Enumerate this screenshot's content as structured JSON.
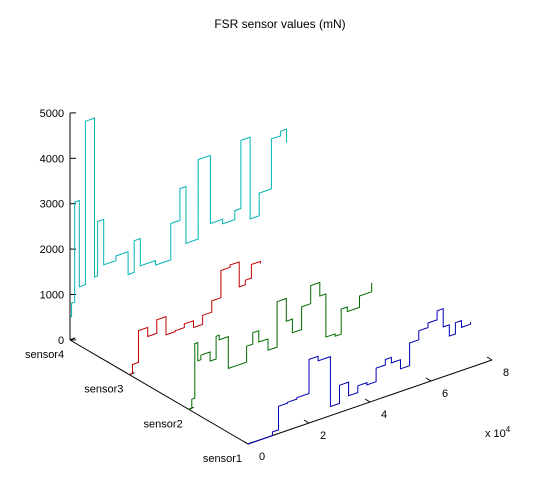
{
  "chart_data": {
    "type": "line",
    "view": "3d",
    "title": "FSR sensor values (mN)",
    "xlabel": "",
    "ylabel": "",
    "zlabel": "",
    "x_exponent_label": "x 10",
    "x_exponent": "4",
    "xlim": [
      0,
      8
    ],
    "zlim": [
      0,
      5000
    ],
    "x_ticks": [
      "0",
      "2",
      "4",
      "6",
      "8"
    ],
    "y_ticks": [
      "sensor1",
      "sensor2",
      "sensor3",
      "sensor4"
    ],
    "z_ticks": [
      "0",
      "1000",
      "2000",
      "3000",
      "4000",
      "5000"
    ],
    "grid": false,
    "series": [
      {
        "name": "sensor1",
        "color": "#0000b4",
        "x": [
          0.0,
          0.8,
          1.0,
          1.3,
          1.6,
          2.0,
          2.3,
          2.7,
          3.0,
          3.3,
          3.6,
          3.9,
          4.2,
          4.5,
          4.7,
          5.0,
          5.3,
          5.6,
          5.9,
          6.2,
          6.4,
          6.6,
          6.8,
          7.0,
          7.3
        ],
        "values": [
          0,
          80,
          600,
          620,
          650,
          1400,
          1300,
          200,
          600,
          300,
          450,
          400,
          700,
          820,
          700,
          500,
          1000,
          1200,
          1300,
          1500,
          1100,
          850,
          1100,
          950,
          1000
        ]
      },
      {
        "name": "sensor2",
        "color": "#006b00",
        "x": [
          0.0,
          0.1,
          0.2,
          0.3,
          0.4,
          0.7,
          0.9,
          1.0,
          1.3,
          1.6,
          1.9,
          2.1,
          2.3,
          2.6,
          2.9,
          3.2,
          3.4,
          3.7,
          4.0,
          4.3,
          4.5,
          4.8,
          5.0,
          5.2,
          5.6,
          6.0
        ],
        "values": [
          0,
          200,
          1400,
          1000,
          1100,
          900,
          1400,
          1300,
          600,
          600,
          950,
          1200,
          950,
          700,
          1700,
          1200,
          900,
          1400,
          1800,
          1500,
          550,
          500,
          1050,
          950,
          1200,
          1400
        ]
      },
      {
        "name": "sensor3",
        "color": "#c00000",
        "x": [
          0.0,
          0.1,
          0.3,
          0.6,
          0.9,
          1.2,
          1.5,
          1.8,
          2.1,
          2.4,
          2.7,
          3.0,
          3.3,
          3.6,
          3.8,
          4.0,
          4.3
        ],
        "values": [
          0,
          200,
          900,
          700,
          1000,
          600,
          620,
          700,
          550,
          750,
          1000,
          1600,
          1650,
          1100,
          1200,
          1500,
          1450
        ]
      },
      {
        "name": "sensor4",
        "color": "#00b4b4",
        "x": [
          0.0,
          0.05,
          0.15,
          0.3,
          0.5,
          0.8,
          0.9,
          1.1,
          1.5,
          1.9,
          2.1,
          2.3,
          2.8,
          3.3,
          3.6,
          3.8,
          4.2,
          4.6,
          5.0,
          5.4,
          5.6,
          5.9,
          6.2,
          6.6,
          6.9,
          7.1
        ],
        "values": [
          500,
          800,
          3000,
          1100,
          4700,
          1200,
          2400,
          1400,
          1500,
          1000,
          1700,
          1100,
          1000,
          1800,
          2500,
          1250,
          3000,
          1500,
          1400,
          1600,
          3100,
          1300,
          1800,
          2900,
          3000,
          2700
        ]
      }
    ]
  }
}
